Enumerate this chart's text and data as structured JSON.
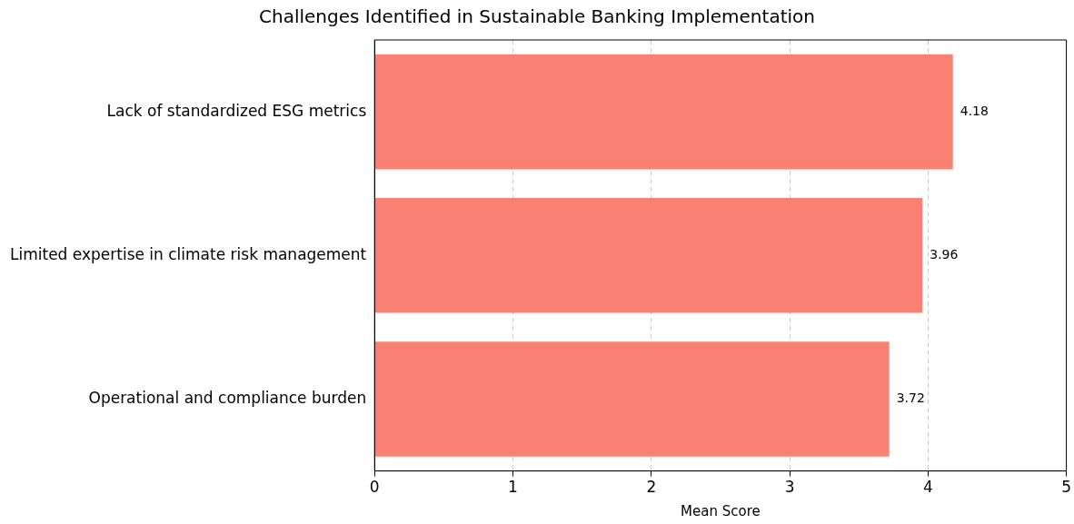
{
  "chart_data": {
    "type": "bar",
    "orientation": "horizontal",
    "title": "Challenges Identified in Sustainable Banking Implementation",
    "xlabel": "Mean Score",
    "categories": [
      "Lack of standardized ESG metrics",
      "Limited expertise in climate risk management",
      "Operational and compliance burden"
    ],
    "values": [
      4.18,
      3.96,
      3.72
    ],
    "color": "#fa8072",
    "xlim": [
      0,
      5
    ],
    "xticks": [
      0,
      1,
      2,
      3,
      4,
      5
    ],
    "grid": "x",
    "data_labels": true,
    "legend": false
  }
}
